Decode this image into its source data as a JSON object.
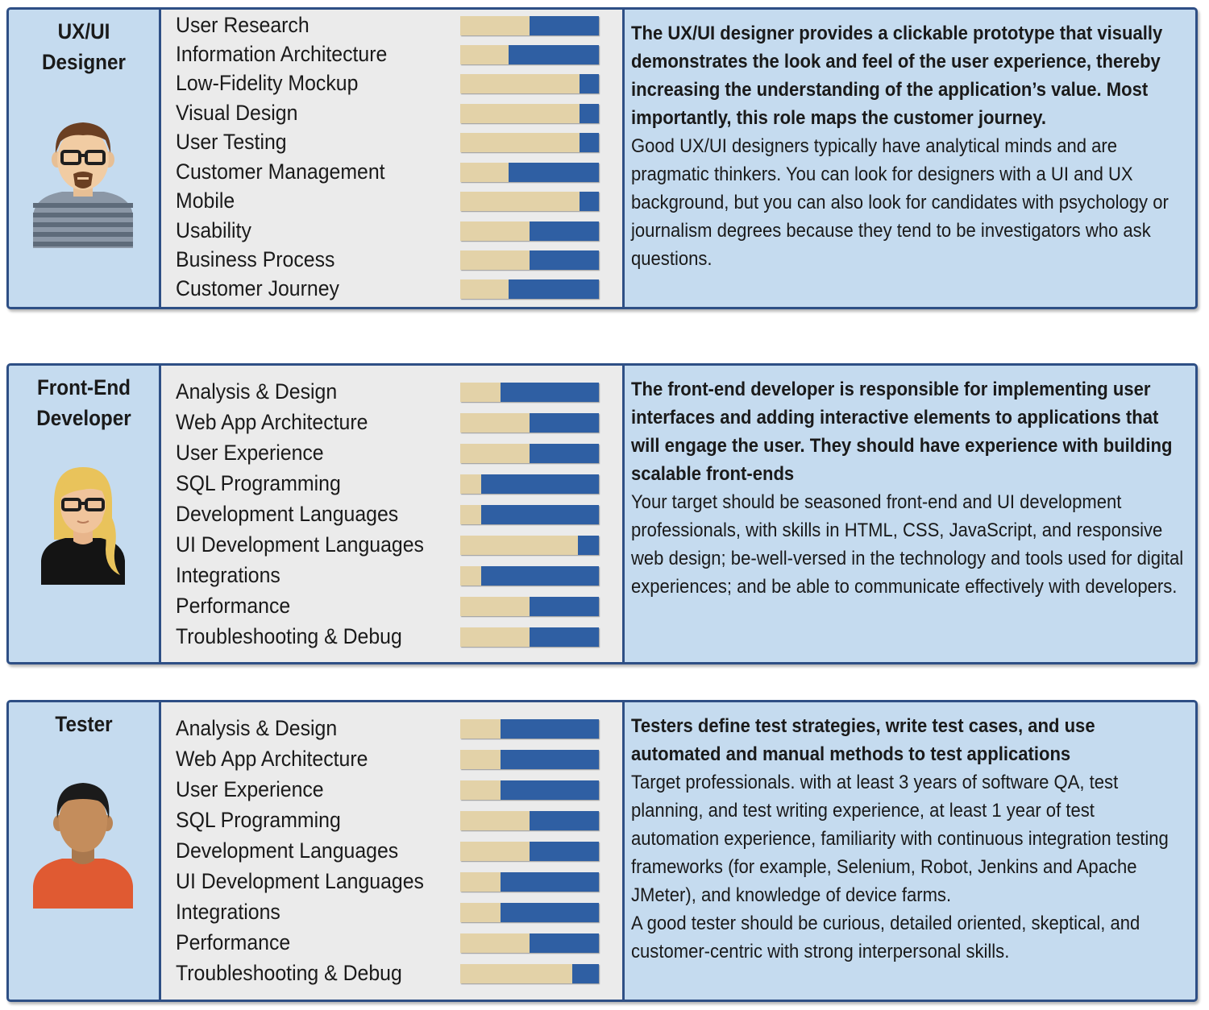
{
  "colors": {
    "bar_full": "#2f5fa3",
    "bar_fill": "#e3d2a8",
    "card_bg": "#c5dbef",
    "skills_bg": "#ebebeb",
    "border": "#2e4f85"
  },
  "roles": [
    {
      "title_line1": "UX/UI",
      "title_line2": "Designer",
      "avatar_icon": "designer-avatar-icon",
      "skills": [
        {
          "label": "User Research",
          "level": 0.5
        },
        {
          "label": "Information Architecture",
          "level": 0.35
        },
        {
          "label": "Low-Fidelity Mockup",
          "level": 0.86
        },
        {
          "label": "Visual Design",
          "level": 0.86
        },
        {
          "label": "User Testing",
          "level": 0.86
        },
        {
          "label": "Customer Management",
          "level": 0.35
        },
        {
          "label": "Mobile",
          "level": 0.86
        },
        {
          "label": "Usability",
          "level": 0.5
        },
        {
          "label": "Business Process",
          "level": 0.5
        },
        {
          "label": "Customer Journey",
          "level": 0.35
        }
      ],
      "desc_bold": "The UX/UI designer provides a clickable prototype that visually demonstrates the look and feel of the user experience, thereby increasing the understanding of the application’s value. Most importantly, this role maps the customer journey.",
      "desc_paragraphs": [
        "Good UX/UI designers typically have analytical minds and are pragmatic thinkers. You can look for designers with a UI and UX background, but you can also look for candidates with psychology or journalism degrees because they tend to be investigators who ask questions."
      ]
    },
    {
      "title_line1": "Front-End",
      "title_line2": "Developer",
      "avatar_icon": "developer-avatar-icon",
      "skills": [
        {
          "label": "Analysis & Design",
          "level": 0.29
        },
        {
          "label": "Web App Architecture",
          "level": 0.5
        },
        {
          "label": "User Experience",
          "level": 0.5
        },
        {
          "label": "SQL Programming",
          "level": 0.15
        },
        {
          "label": "Development Languages",
          "level": 0.15
        },
        {
          "label": "UI Development Languages",
          "level": 0.85
        },
        {
          "label": "Integrations",
          "level": 0.15
        },
        {
          "label": "Performance",
          "level": 0.5
        },
        {
          "label": "Troubleshooting & Debug",
          "level": 0.5
        }
      ],
      "desc_bold": "The front-end developer is responsible for implementing user interfaces and adding interactive elements to applications that will engage the user. They should have experience with building scalable front-ends",
      "desc_paragraphs": [
        "Your target should be seasoned front-end and UI development professionals, with skills in HTML, CSS, JavaScript, and responsive web design; be-well-versed in the technology and tools used for digital experiences; and be able to communicate effectively with developers."
      ]
    },
    {
      "title_line1": "Tester",
      "title_line2": "",
      "avatar_icon": "tester-avatar-icon",
      "skills": [
        {
          "label": "Analysis & Design",
          "level": 0.29
        },
        {
          "label": "Web App Architecture",
          "level": 0.29
        },
        {
          "label": "User Experience",
          "level": 0.29
        },
        {
          "label": "SQL Programming",
          "level": 0.5
        },
        {
          "label": "Development Languages",
          "level": 0.5
        },
        {
          "label": "UI Development Languages",
          "level": 0.29
        },
        {
          "label": "Integrations",
          "level": 0.29
        },
        {
          "label": "Performance",
          "level": 0.5
        },
        {
          "label": "Troubleshooting & Debug",
          "level": 0.81
        }
      ],
      "desc_bold": "Testers define test strategies, write test cases, and use automated and manual methods to test applications",
      "desc_paragraphs": [
        "Target professionals. with at least 3 years of software QA, test planning, and test writing experience, at least 1 year of test automation experience, familiarity with continuous integration testing frameworks (for example, Selenium, Robot, Jenkins and Apache JMeter), and knowledge of device farms.",
        "A good tester should be curious, detailed oriented, skeptical, and customer-centric with strong interpersonal skills."
      ]
    }
  ]
}
